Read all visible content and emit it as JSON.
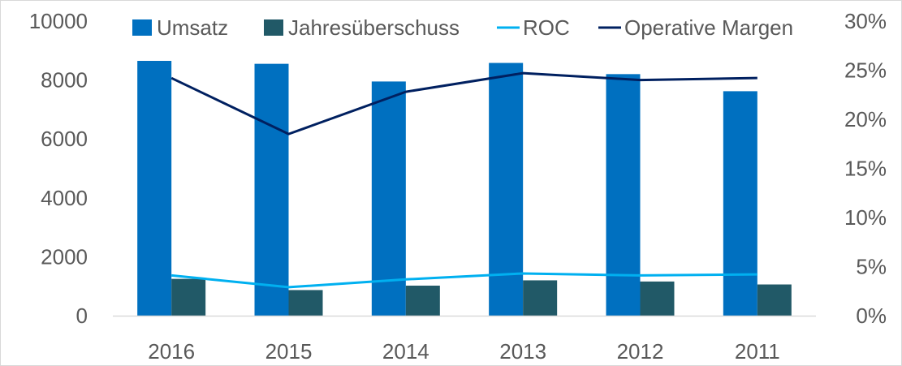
{
  "chart_data": {
    "type": "bar",
    "categories": [
      "2016",
      "2015",
      "2014",
      "2013",
      "2012",
      "2011"
    ],
    "series": [
      {
        "name": "Umsatz",
        "type": "bar",
        "axis": "left",
        "values": [
          8650,
          8550,
          7950,
          8580,
          8200,
          7620
        ]
      },
      {
        "name": "Jahresüberschuss",
        "type": "bar",
        "axis": "left",
        "values": [
          1250,
          870,
          1020,
          1200,
          1160,
          1060
        ]
      },
      {
        "name": "ROC",
        "type": "line",
        "axis": "right",
        "values": [
          0.041,
          0.029,
          0.037,
          0.043,
          0.041,
          0.042
        ]
      },
      {
        "name": "Operative Margen",
        "type": "line",
        "axis": "right",
        "values": [
          0.242,
          0.185,
          0.228,
          0.247,
          0.24,
          0.242
        ]
      }
    ],
    "y_left": {
      "ylim": [
        0,
        10000
      ],
      "ticks": [
        "0",
        "2000",
        "4000",
        "6000",
        "8000",
        "10000"
      ]
    },
    "y_right": {
      "ylim": [
        0,
        0.3
      ],
      "ticks": [
        "0%",
        "5%",
        "10%",
        "15%",
        "20%",
        "25%",
        "30%"
      ]
    },
    "grid": false,
    "legend_position": "top",
    "colors": {
      "Umsatz": "#0070C0",
      "Jahresüberschuss": "#215967",
      "ROC": "#00B0F0",
      "Operative Margen": "#002060",
      "axis": "#d9d9d9",
      "text": "#595959"
    }
  }
}
